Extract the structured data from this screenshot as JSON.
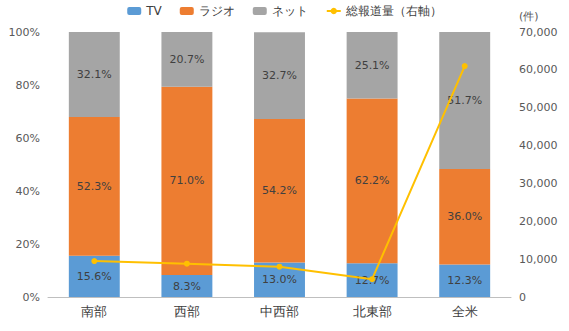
{
  "chart_data": {
    "type": "bar",
    "stacked": true,
    "grid": false,
    "legend": "top",
    "categories": [
      "南部",
      "西部",
      "中西部",
      "北東部",
      "全米"
    ],
    "series": [
      {
        "name": "TV",
        "color": "#5B9BD5",
        "data_labels": true,
        "values": [
          15.6,
          8.3,
          13.0,
          12.7,
          12.3
        ],
        "value_labels": [
          "15.6%",
          "8.3%",
          "13.0%",
          "12.7%",
          "12.3%"
        ]
      },
      {
        "name": "ラジオ",
        "color": "#ED7D31",
        "data_labels": true,
        "values": [
          52.3,
          71.0,
          54.2,
          62.2,
          36.0
        ],
        "value_labels": [
          "52.3%",
          "71.0%",
          "54.2%",
          "62.2%",
          "36.0%"
        ]
      },
      {
        "name": "ネット",
        "color": "#A5A5A5",
        "data_labels": true,
        "values": [
          32.1,
          20.7,
          32.7,
          25.1,
          51.7
        ],
        "value_labels": [
          "32.1%",
          "20.7%",
          "32.7%",
          "25.1%",
          "51.7%"
        ]
      },
      {
        "name": "総報道量（右軸）",
        "type": "line",
        "axis": "y2",
        "color": "#FFC000",
        "marker": "circle",
        "data_labels": false,
        "values": [
          9500,
          8800,
          8000,
          4700,
          61000
        ]
      }
    ],
    "ylim": [
      0,
      100
    ],
    "yticks": [
      {
        "value": 0,
        "label": "0%"
      },
      {
        "value": 20,
        "label": "20%"
      },
      {
        "value": 40,
        "label": "40%"
      },
      {
        "value": 60,
        "label": "60%"
      },
      {
        "value": 80,
        "label": "80%"
      },
      {
        "value": 100,
        "label": "100%"
      }
    ],
    "y2lim": [
      0,
      70000
    ],
    "y2ticks": [
      0,
      {
        "value": 10000,
        "label": "10,000"
      },
      {
        "value": 20000,
        "label": "20,000"
      },
      {
        "value": 30000,
        "label": "30,000"
      },
      {
        "value": 40000,
        "label": "40,000"
      },
      {
        "value": 50000,
        "label": "50,000"
      },
      {
        "value": 60000,
        "label": "60,000"
      },
      {
        "value": 70000,
        "label": "70,000"
      }
    ],
    "y2label": "(件)"
  }
}
